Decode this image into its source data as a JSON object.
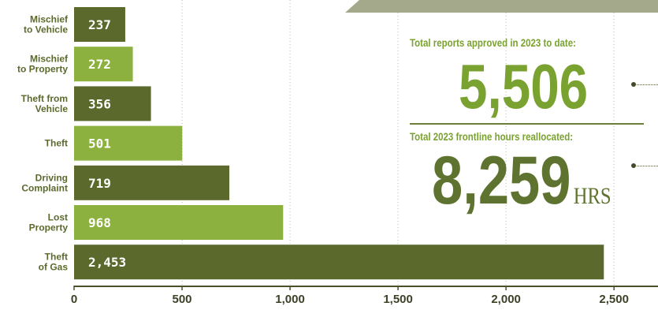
{
  "colors": {
    "dark_olive": "#5b6a2c",
    "light_green": "#8cb13e",
    "accent_green": "#7aa230",
    "dark_text": "#5f7330",
    "banner": "#a3a98a"
  },
  "stats": {
    "reports_caption": "Total reports approved in 2023 to date:",
    "reports_value": "5,506",
    "hours_caption": "Total 2023 frontline hours reallocated:",
    "hours_value": "8,259",
    "hours_unit": "HRS"
  },
  "chart_data": {
    "type": "bar",
    "orientation": "horizontal",
    "categories": [
      [
        "Mischief",
        "to Vehicle"
      ],
      [
        "Mischief",
        "to Property"
      ],
      [
        "Theft from",
        "Vehicle"
      ],
      [
        "Theft"
      ],
      [
        "Driving",
        "Complaint"
      ],
      [
        "Lost",
        "Property"
      ],
      [
        "Theft",
        "of Gas"
      ]
    ],
    "values": [
      237,
      272,
      356,
      501,
      719,
      968,
      2453
    ],
    "value_labels": [
      "237",
      "272",
      "356",
      "501",
      "719",
      "968",
      "2,453"
    ],
    "bar_colors": [
      "#5b6a2c",
      "#8cb13e",
      "#5b6a2c",
      "#8cb13e",
      "#5b6a2c",
      "#8cb13e",
      "#5b6a2c"
    ],
    "xticks": [
      0,
      500,
      1000,
      1500,
      2000,
      2500
    ],
    "xtick_labels": [
      "0",
      "500",
      "1,000",
      "1,500",
      "2,000",
      "2,500"
    ],
    "xlim": [
      0,
      2500
    ],
    "grid": "vertical dotted"
  }
}
